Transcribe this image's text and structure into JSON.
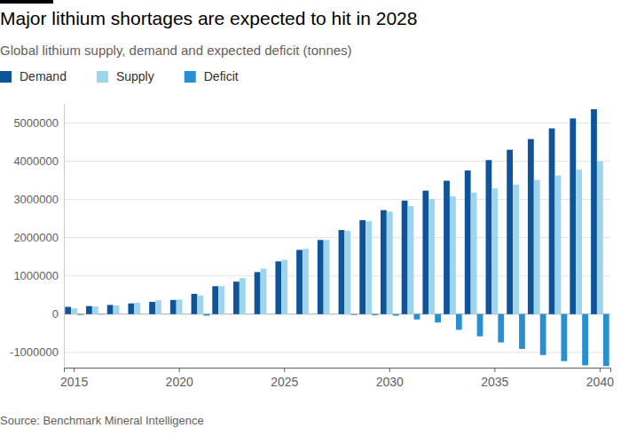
{
  "chart_data": {
    "type": "bar",
    "title": "Major lithium shortages are expected to hit in 2028",
    "subtitle": "Global lithium supply, demand and expected deficit (tonnes)",
    "source": "Source: Benchmark Mineral Intelligence",
    "categories": [
      "2015",
      null,
      null,
      null,
      null,
      "2020",
      null,
      null,
      null,
      null,
      "2025",
      null,
      null,
      null,
      null,
      "2030",
      null,
      null,
      null,
      null,
      "2035",
      null,
      null,
      null,
      null,
      "2040"
    ],
    "series": [
      {
        "name": "Demand",
        "color": "#0f5499",
        "values": [
          190000,
          210000,
          240000,
          280000,
          320000,
          370000,
          530000,
          730000,
          850000,
          1100000,
          1380000,
          1680000,
          1940000,
          2200000,
          2460000,
          2720000,
          2970000,
          3230000,
          3490000,
          3760000,
          4030000,
          4300000,
          4580000,
          4860000,
          5120000,
          5360000
        ]
      },
      {
        "name": "Supply",
        "color": "#9dd5ed",
        "values": [
          150000,
          200000,
          230000,
          300000,
          360000,
          380000,
          490000,
          730000,
          940000,
          1190000,
          1420000,
          1710000,
          1940000,
          2180000,
          2430000,
          2680000,
          2830000,
          3010000,
          3080000,
          3180000,
          3290000,
          3390000,
          3510000,
          3630000,
          3780000,
          4000000
        ]
      },
      {
        "name": "Deficit",
        "color": "#2a8fd0",
        "values": [
          -20000,
          -10000,
          0,
          0,
          0,
          0,
          -40000,
          0,
          0,
          0,
          0,
          0,
          0,
          -20000,
          -30000,
          -40000,
          -140000,
          -220000,
          -410000,
          -580000,
          -740000,
          -910000,
          -1070000,
          -1230000,
          -1340000,
          -1360000
        ]
      }
    ],
    "ylim": [
      -1400000,
      5500000
    ],
    "yticks": [
      -1000000,
      0,
      1000000,
      2000000,
      3000000,
      4000000,
      5000000
    ],
    "grid": true,
    "legend": "top-left"
  }
}
